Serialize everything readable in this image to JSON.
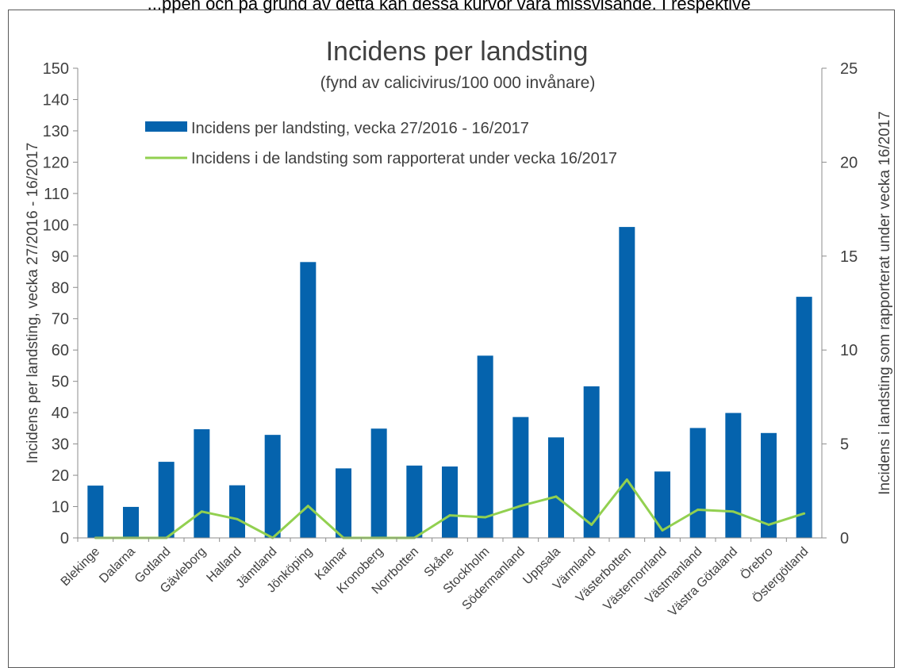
{
  "caption_fragment": "...ppen och på grund av detta kan dessa kurvor vara missvisande. I respektive",
  "chart_data": {
    "type": "bar",
    "title": "Incidens per landsting",
    "subtitle": "(fynd av calicivirus/100 000 invånare)",
    "ylabel": "Incidens per landsting, vecka 27/2016 - 16/2017",
    "y2label": "Incidens i landsting som rapporterat under vecka 16/2017",
    "ylim": [
      0,
      150
    ],
    "y2lim": [
      0,
      25
    ],
    "yticks": [
      "0",
      "10",
      "20",
      "30",
      "40",
      "50",
      "60",
      "70",
      "80",
      "90",
      "100",
      "110",
      "120",
      "130",
      "140",
      "150"
    ],
    "y2ticks": [
      "0",
      "5",
      "10",
      "15",
      "20",
      "25"
    ],
    "legend_position": "top-left",
    "categories": [
      "Blekinge",
      "Dalarna",
      "Gotland",
      "Gävleborg",
      "Halland",
      "Jämtland",
      "Jönköping",
      "Kalmar",
      "Kronoberg",
      "Norrbotten",
      "Skåne",
      "Stockholm",
      "Södermanland",
      "Uppsala",
      "Värmland",
      "Västerbotten",
      "Västernorrland",
      "Västmanland",
      "Västra Götaland",
      "Örebro",
      "Östergötland"
    ],
    "series": [
      {
        "name": "Incidens per landsting, vecka 27/2016 - 16/2017",
        "type": "bar",
        "axis": "left",
        "color": "#0563AD",
        "values": [
          16.7,
          9.9,
          24.3,
          34.7,
          16.8,
          32.9,
          88.1,
          22.2,
          34.9,
          23.1,
          22.8,
          58.2,
          38.6,
          32.1,
          48.4,
          99.3,
          21.2,
          35.1,
          39.9,
          33.5,
          77.0
        ]
      },
      {
        "name": "Incidens i de landsting som rapporterat under vecka 16/2017",
        "type": "line",
        "axis": "right",
        "color": "#92D050",
        "values": [
          0,
          0,
          0,
          1.4,
          1.0,
          0,
          1.7,
          0,
          0,
          0,
          1.2,
          1.1,
          1.7,
          2.2,
          0.7,
          3.1,
          0.4,
          1.5,
          1.4,
          0.7,
          1.3
        ]
      }
    ]
  }
}
